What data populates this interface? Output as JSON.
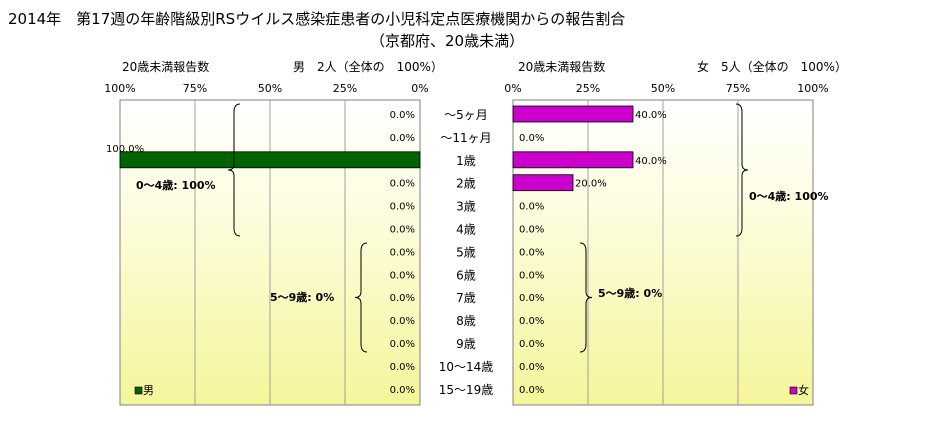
{
  "title": "2014年　第17週の年齢階級別RSウイルス感染症患者の小児科定点医療機関からの報告割合",
  "subtitle": "（京都府、20歳未満）",
  "chart_data": {
    "type": "bar",
    "categories": [
      "～5ヶ月",
      "～11ヶ月",
      "1歳",
      "2歳",
      "3歳",
      "4歳",
      "5歳",
      "6歳",
      "7歳",
      "8歳",
      "9歳",
      "10～14歳",
      "15～19歳"
    ],
    "series": [
      {
        "name": "男",
        "values": [
          0,
          0,
          100,
          0,
          0,
          0,
          0,
          0,
          0,
          0,
          0,
          0,
          0
        ],
        "labels": [
          "0.0%",
          "0.0%",
          "100.0%",
          "0.0%",
          "0.0%",
          "0.0%",
          "0.0%",
          "0.0%",
          "0.0%",
          "0.0%",
          "0.0%",
          "0.0%",
          "0.0%"
        ],
        "color": "#006400"
      },
      {
        "name": "女",
        "values": [
          40,
          0,
          40,
          20,
          0,
          0,
          0,
          0,
          0,
          0,
          0,
          0,
          0
        ],
        "labels": [
          "40.0%",
          "0.0%",
          "40.0%",
          "20.0%",
          "0.0%",
          "0.0%",
          "0.0%",
          "0.0%",
          "0.0%",
          "0.0%",
          "0.0%",
          "0.0%",
          "0.0%"
        ],
        "color": "#CC00CC"
      }
    ],
    "axis_label": "20歳未満報告数",
    "male_header": "男　2人（全体の　100%）",
    "female_header": "女　5人（全体の　100%）",
    "male_ticks": [
      "100%",
      "75%",
      "50%",
      "25%",
      "0%"
    ],
    "female_ticks": [
      "0%",
      "25%",
      "50%",
      "75%",
      "100%"
    ],
    "xlim": [
      0,
      100
    ],
    "grid": true,
    "legend_placement": "bottom-left / bottom-right",
    "annotations": {
      "male_0_4": "0～4歳: 100%",
      "male_5_9": "5～9歳: 0%",
      "female_0_4": "0～4歳: 100%",
      "female_5_9": "5～9歳: 0%"
    }
  }
}
